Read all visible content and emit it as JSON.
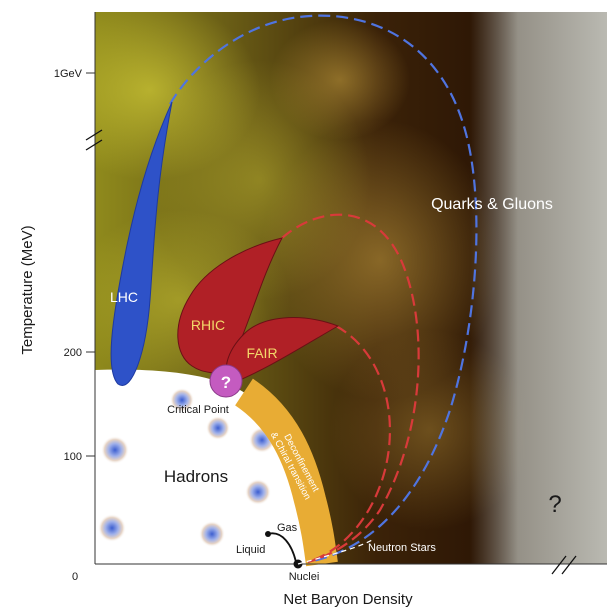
{
  "axes": {
    "ylabel": "Temperature (MeV)",
    "xlabel": "Net Baryon Density",
    "yticks": [
      {
        "label": "1GeV"
      },
      {
        "label": "200"
      },
      {
        "label": "100"
      },
      {
        "label": "0"
      }
    ]
  },
  "regions": {
    "qgp": "Quarks & Gluons",
    "hadrons": "Hadrons",
    "unknown": "?"
  },
  "experiments": {
    "lhc": "LHC",
    "rhic": "RHIC",
    "fair": "FAIR"
  },
  "markers": {
    "critical_point_symbol": "?",
    "critical_point": "Critical Point",
    "transition_line1": "Deconfinement",
    "transition_line2": "& Chiral transition",
    "gas": "Gas",
    "liquid": "Liquid",
    "nuclei": "Nuclei",
    "neutron_stars": "Neutron Stars"
  },
  "colors": {
    "lhc": "#2e52c8",
    "rhic_fair": "#b02026",
    "critical_point": "#c45bc0",
    "transition_band": "#e8ac34",
    "blue_dash": "#4f74e0",
    "red_dash": "#d83a3a"
  }
}
